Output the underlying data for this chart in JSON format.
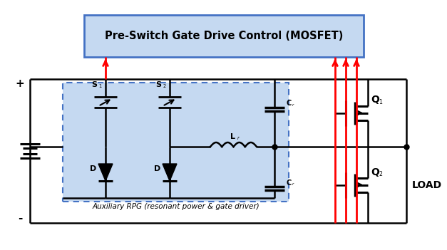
{
  "title": "Pre-Switch Gate Drive Control (MOSFET)",
  "subtitle": "Auxiliary RPG (resonant power & gate driver)",
  "bg_color": "#ffffff",
  "box_fill": "#c5d9f1",
  "box_edge": "#4472c4",
  "line_color": "#000000",
  "red_color": "#ff0000",
  "load_label": "LOAD",
  "q1_label": "Q",
  "q2_label": "Q",
  "s1_label": "S",
  "s2_label": "S",
  "d1_label": "D",
  "d2_label": "D",
  "lr_label": "L",
  "cr_label": "C",
  "plus_label": "+",
  "minus_label": "-",
  "figw": 6.27,
  "figh": 3.51,
  "dpi": 100
}
